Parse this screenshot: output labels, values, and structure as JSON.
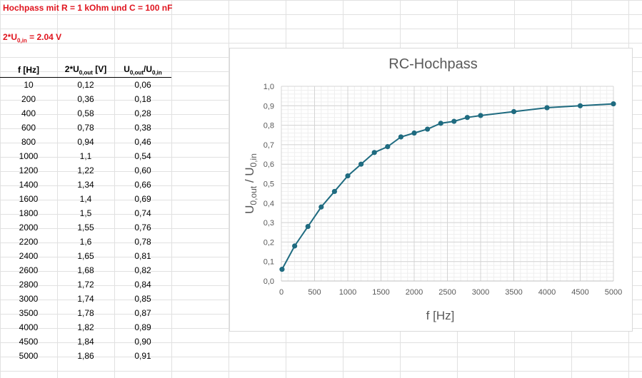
{
  "sheet": {
    "title_line": "Hochpass mit R = 1 kOhm und C = 100 nF",
    "amp_prefix": "2*U",
    "amp_sub": "0,in",
    "amp_suffix": " = 2.04 V"
  },
  "table": {
    "headers": {
      "f": "f [Hz]",
      "u_prefix": "2*U",
      "u_sub": "0,out",
      "u_suffix": " [V]",
      "r_a": "U",
      "r_a_sub": "0,out",
      "r_slash": "/U",
      "r_b_sub": "0,in"
    },
    "rows": [
      [
        "10",
        "0,12",
        "0,06"
      ],
      [
        "200",
        "0,36",
        "0,18"
      ],
      [
        "400",
        "0,58",
        "0,28"
      ],
      [
        "600",
        "0,78",
        "0,38"
      ],
      [
        "800",
        "0,94",
        "0,46"
      ],
      [
        "1000",
        "1,1",
        "0,54"
      ],
      [
        "1200",
        "1,22",
        "0,60"
      ],
      [
        "1400",
        "1,34",
        "0,66"
      ],
      [
        "1600",
        "1,4",
        "0,69"
      ],
      [
        "1800",
        "1,5",
        "0,74"
      ],
      [
        "2000",
        "1,55",
        "0,76"
      ],
      [
        "2200",
        "1,6",
        "0,78"
      ],
      [
        "2400",
        "1,65",
        "0,81"
      ],
      [
        "2600",
        "1,68",
        "0,82"
      ],
      [
        "2800",
        "1,72",
        "0,84"
      ],
      [
        "3000",
        "1,74",
        "0,85"
      ],
      [
        "3500",
        "1,78",
        "0,87"
      ],
      [
        "4000",
        "1,82",
        "0,89"
      ],
      [
        "4500",
        "1,84",
        "0,90"
      ],
      [
        "5000",
        "1,86",
        "0,91"
      ]
    ]
  },
  "chart_data": {
    "type": "line",
    "title": "RC-Hochpass",
    "xlabel": "f [Hz]",
    "ylabel_main": "U",
    "ylabel_sub1": "0,out",
    "ylabel_mid": " / U",
    "ylabel_sub2": "0,in",
    "xlim": [
      0,
      5000
    ],
    "ylim": [
      0,
      1
    ],
    "x_ticks": [
      0,
      500,
      1000,
      1500,
      2000,
      2500,
      3000,
      3500,
      4000,
      4500,
      5000
    ],
    "x_tick_labels": [
      "0",
      "500",
      "1000",
      "1500",
      "2000",
      "2500",
      "3000",
      "3500",
      "4000",
      "4500",
      "5000"
    ],
    "y_ticks": [
      0,
      0.1,
      0.2,
      0.3,
      0.4,
      0.5,
      0.6,
      0.7,
      0.8,
      0.9,
      1.0
    ],
    "y_tick_labels": [
      "0,0",
      "0,1",
      "0,2",
      "0,3",
      "0,4",
      "0,5",
      "0,6",
      "0,7",
      "0,8",
      "0,9",
      "1,0"
    ],
    "grid": true,
    "x": [
      10,
      200,
      400,
      600,
      800,
      1000,
      1200,
      1400,
      1600,
      1800,
      2000,
      2200,
      2400,
      2600,
      2800,
      3000,
      3500,
      4000,
      4500,
      5000
    ],
    "series": [
      {
        "values": [
          0.06,
          0.18,
          0.28,
          0.38,
          0.46,
          0.54,
          0.6,
          0.66,
          0.69,
          0.74,
          0.76,
          0.78,
          0.81,
          0.82,
          0.84,
          0.85,
          0.87,
          0.89,
          0.9,
          0.91
        ]
      }
    ],
    "series_color": "#1f6b80"
  }
}
